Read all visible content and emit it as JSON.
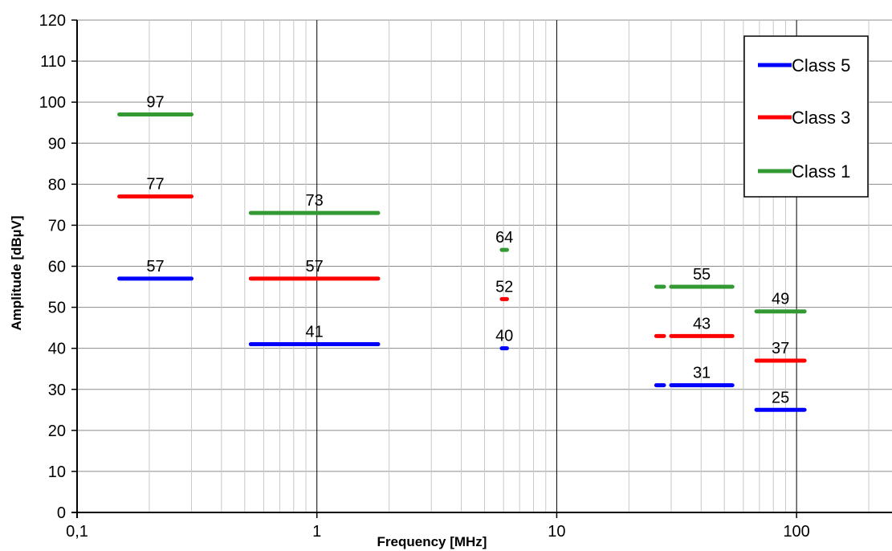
{
  "chart_data": {
    "type": "line",
    "xlabel": "Frequency [MHz]",
    "ylabel": "Amplitude [dBµV]",
    "x_scale": "log",
    "xlim": [
      0.1,
      250
    ],
    "ylim": [
      0,
      120
    ],
    "y_ticks": [
      0,
      10,
      20,
      30,
      40,
      50,
      60,
      70,
      80,
      90,
      100,
      110,
      120
    ],
    "x_ticks": [
      {
        "value": 0.1,
        "label": "0,1"
      },
      {
        "value": 1,
        "label": "1"
      },
      {
        "value": 10,
        "label": "10"
      },
      {
        "value": 100,
        "label": "100"
      }
    ],
    "grid": "on (major and minor log grid)",
    "legend_position": "top-right",
    "series": [
      {
        "name": "Class 5",
        "color": "#0000ff",
        "segments": [
          {
            "x": [
              0.15,
              0.3
            ],
            "y": 57,
            "label": "57"
          },
          {
            "x": [
              0.53,
              1.8
            ],
            "y": 41,
            "label": "41"
          },
          {
            "x": [
              5.9,
              6.2
            ],
            "y": 40,
            "label": "40"
          },
          {
            "x": [
              26,
              28
            ],
            "y": 31,
            "label": ""
          },
          {
            "x": [
              30,
              54
            ],
            "y": 31,
            "label": "31"
          },
          {
            "x": [
              68,
              108
            ],
            "y": 25,
            "label": "25"
          }
        ]
      },
      {
        "name": "Class 3",
        "color": "#ff0000",
        "segments": [
          {
            "x": [
              0.15,
              0.3
            ],
            "y": 77,
            "label": "77"
          },
          {
            "x": [
              0.53,
              1.8
            ],
            "y": 57,
            "label": "57"
          },
          {
            "x": [
              5.9,
              6.2
            ],
            "y": 52,
            "label": "52"
          },
          {
            "x": [
              26,
              28
            ],
            "y": 43,
            "label": ""
          },
          {
            "x": [
              30,
              54
            ],
            "y": 43,
            "label": "43"
          },
          {
            "x": [
              68,
              108
            ],
            "y": 37,
            "label": "37"
          }
        ]
      },
      {
        "name": "Class 1",
        "color": "#339933",
        "segments": [
          {
            "x": [
              0.15,
              0.3
            ],
            "y": 97,
            "label": "97"
          },
          {
            "x": [
              0.53,
              1.8
            ],
            "y": 73,
            "label": "73"
          },
          {
            "x": [
              5.9,
              6.2
            ],
            "y": 64,
            "label": "64"
          },
          {
            "x": [
              26,
              28
            ],
            "y": 55,
            "label": ""
          },
          {
            "x": [
              30,
              54
            ],
            "y": 55,
            "label": "55"
          },
          {
            "x": [
              68,
              108
            ],
            "y": 49,
            "label": "49"
          }
        ]
      }
    ]
  }
}
